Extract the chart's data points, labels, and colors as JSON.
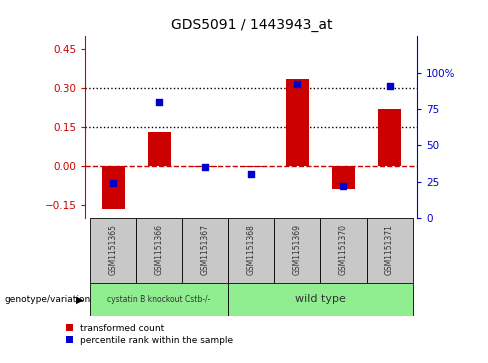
{
  "title": "GDS5091 / 1443943_at",
  "samples": [
    "GSM1151365",
    "GSM1151366",
    "GSM1151367",
    "GSM1151368",
    "GSM1151369",
    "GSM1151370",
    "GSM1151371"
  ],
  "transformed_count": [
    -0.165,
    0.13,
    -0.005,
    -0.005,
    0.335,
    -0.09,
    0.22
  ],
  "percentile_rank": [
    24,
    80,
    35,
    30,
    92,
    22,
    91
  ],
  "group_labels": [
    "cystatin B knockout Cstb-/-",
    "wild type"
  ],
  "group_colors": [
    "#90EE90",
    "#90EE90"
  ],
  "group_split": 3,
  "ylim_left": [
    -0.2,
    0.5
  ],
  "ylim_right": [
    0,
    125
  ],
  "yticks_left": [
    -0.15,
    0.0,
    0.15,
    0.3,
    0.45
  ],
  "yticks_right": [
    0,
    25,
    50,
    75,
    100
  ],
  "hlines": [
    0.15,
    0.3
  ],
  "bar_color": "#CC0000",
  "dot_color": "#0000CC",
  "dashed_line_color": "#CC0000",
  "label_transformed": "transformed count",
  "label_percentile": "percentile rank within the sample",
  "genotype_label": "genotype/variation",
  "sample_box_color": "#C8C8C8",
  "bar_width": 0.5
}
